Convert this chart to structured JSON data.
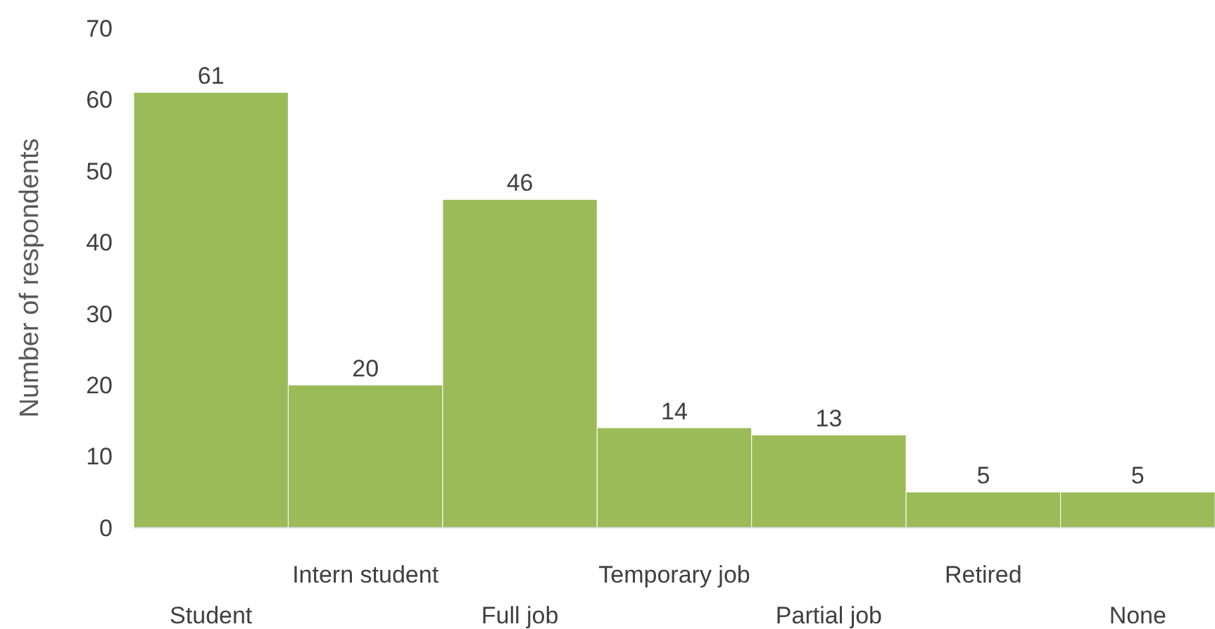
{
  "chart_data": {
    "type": "bar",
    "ylabel": "Number of respondents",
    "categories": [
      "Student",
      "Intern student",
      "Full job",
      "Temporary job",
      "Partial job",
      "Retired",
      "None"
    ],
    "values": [
      61,
      20,
      46,
      14,
      13,
      5,
      5
    ],
    "color": "#9bbb59",
    "ylim": [
      0,
      70
    ],
    "yticks": [
      0,
      10,
      20,
      30,
      40,
      50,
      60,
      70
    ],
    "data_labels": true,
    "grid": false
  }
}
